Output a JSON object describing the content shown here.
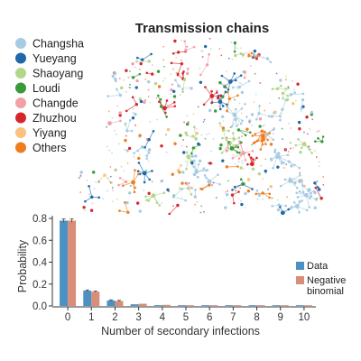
{
  "chart_data": [
    {
      "type": "network",
      "title": "Transmission chains",
      "legend": [
        {
          "label": "Changsha",
          "color": "#a6cbe3"
        },
        {
          "label": "Yueyang",
          "color": "#1f69a8"
        },
        {
          "label": "Shaoyang",
          "color": "#b2d68c"
        },
        {
          "label": "Loudi",
          "color": "#3a9a3a"
        },
        {
          "label": "Changde",
          "color": "#f2a0a6"
        },
        {
          "label": "Zhuzhou",
          "color": "#d7262b"
        },
        {
          "label": "Yiyang",
          "color": "#f9c37f"
        },
        {
          "label": "Others",
          "color": "#ef7d1f"
        }
      ],
      "legend_position": "top-left"
    },
    {
      "type": "bar",
      "categories": [
        "0",
        "1",
        "2",
        "3",
        "4",
        "5",
        "6",
        "7",
        "8",
        "9",
        "10"
      ],
      "series": [
        {
          "name": "Data",
          "color": "#4b91c4",
          "values": [
            0.78,
            0.14,
            0.05,
            0.015,
            0.007,
            0.004,
            0.003,
            0.002,
            0.001,
            0.001,
            0.001
          ]
        },
        {
          "name": "Negative binomial",
          "color": "#d88e79",
          "values": [
            0.78,
            0.13,
            0.045,
            0.02,
            0.01,
            0.006,
            0.004,
            0.003,
            0.002,
            0.001,
            0.001
          ]
        }
      ],
      "xlabel": "Number of secondary infections",
      "ylabel": "Probability",
      "ylim": [
        0,
        0.8
      ],
      "yticks": [
        "0.0",
        "0.2",
        "0.4",
        "0.6",
        "0.8"
      ],
      "legend_position": "right"
    }
  ]
}
